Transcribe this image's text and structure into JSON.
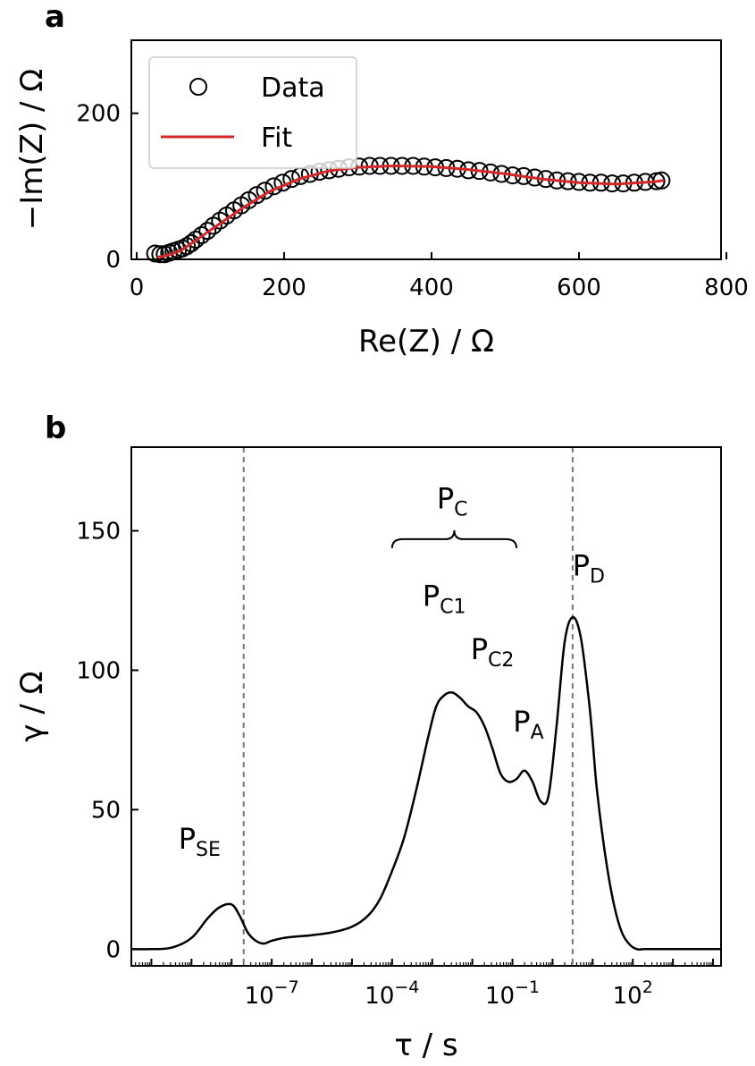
{
  "chart_data": [
    {
      "panel": "a",
      "type": "scatter",
      "xlabel": "Re(Z) / Ω",
      "ylabel": "−Im(Z) / Ω",
      "xlim": [
        0,
        800
      ],
      "ylim": [
        0,
        300
      ],
      "xticks": [
        "0",
        "200",
        "400",
        "600",
        "800"
      ],
      "yticks": [
        "0",
        "200"
      ],
      "legend": {
        "placement": "top-left",
        "entries": [
          "Data",
          "Fit"
        ]
      },
      "colors": {
        "data": "#000000",
        "fit": "#d62728"
      },
      "series": [
        {
          "name": "Data",
          "x": [
            25,
            32,
            38,
            44,
            50,
            56,
            62,
            68,
            74,
            80,
            88,
            96,
            104,
            113,
            122,
            132,
            142,
            152,
            163,
            174,
            186,
            198,
            210,
            222,
            235,
            248,
            261,
            274,
            288,
            302,
            316,
            330,
            345,
            360,
            375,
            390,
            405,
            420,
            435,
            450,
            465,
            480,
            495,
            510,
            525,
            540,
            555,
            570,
            585,
            600,
            615,
            630,
            645,
            660,
            675,
            690,
            705,
            712
          ],
          "y": [
            8,
            7,
            7,
            9,
            11,
            13,
            15,
            18,
            22,
            27,
            33,
            39,
            46,
            53,
            60,
            67,
            74,
            81,
            88,
            94,
            100,
            105,
            110,
            114,
            117,
            120,
            122,
            124,
            126,
            127,
            128,
            128,
            128,
            128,
            128,
            127,
            126,
            125,
            124,
            122,
            121,
            119,
            117,
            115,
            114,
            112,
            110,
            108,
            107,
            106,
            105,
            105,
            104,
            104,
            105,
            106,
            107,
            108
          ]
        },
        {
          "name": "Fit",
          "x": [
            28,
            40,
            60,
            80,
            100,
            140,
            180,
            220,
            260,
            300,
            350,
            400,
            450,
            500,
            550,
            600,
            650,
            700,
            715
          ],
          "y": [
            3,
            5,
            12,
            26,
            40,
            68,
            93,
            110,
            121,
            126,
            128,
            127,
            123,
            117,
            110,
            105,
            103,
            106,
            108
          ]
        }
      ]
    },
    {
      "panel": "b",
      "type": "line",
      "xlabel": "τ / s",
      "ylabel": "γ / Ω",
      "xscale": "log",
      "xlim_log10": [
        -10.5,
        4.2
      ],
      "ylim": [
        -6,
        180
      ],
      "xtick_base": "10",
      "xtick_exponents": [
        "−7",
        "−4",
        "−1",
        "2"
      ],
      "xtick_positions_log10": [
        -7,
        -4,
        -1,
        2
      ],
      "yticks": [
        "0",
        "50",
        "100",
        "150"
      ],
      "vlines_log10": [
        -7.7,
        0.5
      ],
      "annotations": [
        {
          "main": "P",
          "sub": "SE",
          "x_log10": -8.8,
          "y": 36
        },
        {
          "main": "P",
          "sub": "C",
          "x_log10": -2.5,
          "y": 158
        },
        {
          "main": "P",
          "sub": "C1",
          "x_log10": -2.7,
          "y": 123
        },
        {
          "main": "P",
          "sub": "C2",
          "x_log10": -1.5,
          "y": 104
        },
        {
          "main": "P",
          "sub": "A",
          "x_log10": -0.6,
          "y": 78
        },
        {
          "main": "P",
          "sub": "D",
          "x_log10": 0.9,
          "y": 134
        }
      ],
      "brace": {
        "x_log10_start": -4.0,
        "x_log10_end": -0.9,
        "y": 147
      },
      "series": [
        {
          "x_log10": [
            -10.5,
            -10.0,
            -9.5,
            -9.0,
            -8.6,
            -8.3,
            -8.0,
            -7.8,
            -7.6,
            -7.4,
            -7.2,
            -7.0,
            -6.7,
            -6.4,
            -6.0,
            -5.5,
            -5.0,
            -4.6,
            -4.3,
            -4.0,
            -3.7,
            -3.4,
            -3.1,
            -2.9,
            -2.7,
            -2.5,
            -2.3,
            -2.1,
            -1.9,
            -1.7,
            -1.5,
            -1.3,
            -1.1,
            -0.9,
            -0.7,
            -0.5,
            -0.3,
            -0.1,
            0.1,
            0.3,
            0.5,
            0.7,
            0.9,
            1.0,
            1.1,
            1.3,
            1.5,
            1.7,
            1.9,
            2.1,
            2.3,
            2.6,
            3.0,
            3.5,
            4.2
          ],
          "y": [
            0,
            0,
            0.5,
            4,
            11,
            15,
            16,
            12,
            6,
            3,
            2,
            3,
            4,
            4.5,
            5,
            6,
            8,
            12,
            18,
            28,
            40,
            57,
            76,
            87,
            91,
            92,
            90,
            87,
            85,
            80,
            72,
            63,
            60,
            61,
            64,
            60,
            53,
            55,
            80,
            110,
            119,
            112,
            90,
            75,
            58,
            35,
            18,
            7,
            2,
            0,
            0,
            0,
            0,
            0,
            0
          ]
        }
      ]
    }
  ],
  "panel_labels": [
    "a",
    "b"
  ]
}
